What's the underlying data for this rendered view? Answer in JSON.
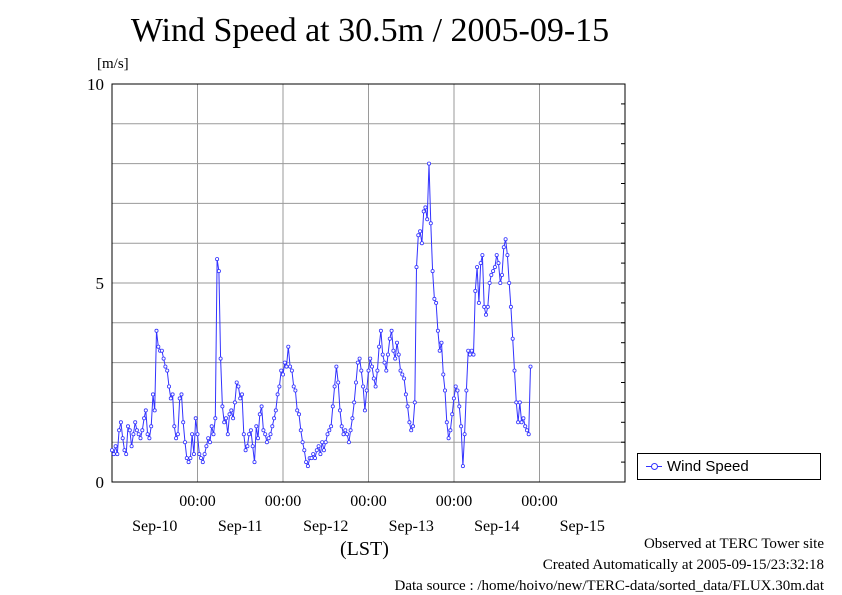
{
  "chart_data": {
    "type": "line",
    "title": "Wind Speed at 30.5m / 2005-09-15",
    "ylabel": "[m/s]",
    "xlabel": "(LST)",
    "ylim": [
      0,
      10
    ],
    "xlim": [
      0,
      6
    ],
    "y_ticks": [
      0,
      5,
      10
    ],
    "x_time_ticks": [
      "00:00",
      "00:00",
      "00:00",
      "00:00",
      "00:00"
    ],
    "x_date_labels": [
      "Sep-10",
      "Sep-11",
      "Sep-12",
      "Sep-13",
      "Sep-14",
      "Sep-15"
    ],
    "grid": true,
    "legend_position": "right",
    "series": [
      {
        "name": "Wind Speed",
        "color": "#3333ff",
        "x_start": 0,
        "x_step": 0.02083,
        "values": [
          0.8,
          0.7,
          0.9,
          0.7,
          1.3,
          1.5,
          1.1,
          0.8,
          0.7,
          1.4,
          1.3,
          0.9,
          1.2,
          1.5,
          1.3,
          1.2,
          1.1,
          1.3,
          1.6,
          1.8,
          1.2,
          1.1,
          1.4,
          2.2,
          1.8,
          3.8,
          3.4,
          3.3,
          3.3,
          3.1,
          2.9,
          2.8,
          2.4,
          2.1,
          2.2,
          1.4,
          1.1,
          1.2,
          2.1,
          2.2,
          1.5,
          1.0,
          0.6,
          0.5,
          0.6,
          1.2,
          0.7,
          1.6,
          1.2,
          0.7,
          0.6,
          0.5,
          0.7,
          0.9,
          1.1,
          1.0,
          1.4,
          1.2,
          1.6,
          5.6,
          5.3,
          3.1,
          1.9,
          1.5,
          1.6,
          1.2,
          1.7,
          1.8,
          1.6,
          2.0,
          2.5,
          2.4,
          2.1,
          2.2,
          1.2,
          0.8,
          0.9,
          1.2,
          1.3,
          0.9,
          0.5,
          1.4,
          1.1,
          1.7,
          1.9,
          1.3,
          1.2,
          1.0,
          1.1,
          1.2,
          1.4,
          1.6,
          1.8,
          2.2,
          2.4,
          2.8,
          2.7,
          3.0,
          2.9,
          3.4,
          2.9,
          2.8,
          2.4,
          2.3,
          1.8,
          1.7,
          1.3,
          1.0,
          0.8,
          0.5,
          0.4,
          0.6,
          0.6,
          0.7,
          0.6,
          0.8,
          0.9,
          0.7,
          1.0,
          0.8,
          1.0,
          1.2,
          1.3,
          1.4,
          1.9,
          2.4,
          2.9,
          2.5,
          1.8,
          1.4,
          1.2,
          1.3,
          1.2,
          1.0,
          1.3,
          1.6,
          2.0,
          2.5,
          3.0,
          3.1,
          2.8,
          2.4,
          1.8,
          2.3,
          2.8,
          3.1,
          2.9,
          2.6,
          2.4,
          2.8,
          3.4,
          3.8,
          3.2,
          3.0,
          2.8,
          3.2,
          3.6,
          3.8,
          3.3,
          3.1,
          3.5,
          3.2,
          2.8,
          2.7,
          2.6,
          2.2,
          1.9,
          1.5,
          1.3,
          1.4,
          2.0,
          5.4,
          6.2,
          6.3,
          6.0,
          6.8,
          6.9,
          6.6,
          8.0,
          6.5,
          5.3,
          4.6,
          4.5,
          3.8,
          3.3,
          3.5,
          2.7,
          2.3,
          1.5,
          1.1,
          1.3,
          1.7,
          2.1,
          2.4,
          2.3,
          1.9,
          1.4,
          0.4,
          1.2,
          2.3,
          3.3,
          3.2,
          3.3,
          3.2,
          4.8,
          5.4,
          4.5,
          5.5,
          5.7,
          4.4,
          4.2,
          4.4,
          5.0,
          5.2,
          5.3,
          5.4,
          5.7,
          5.5,
          5.0,
          5.2,
          5.9,
          6.1,
          5.7,
          5.0,
          4.4,
          3.6,
          2.8,
          2.0,
          1.5,
          2.0,
          1.5,
          1.6,
          1.4,
          1.3,
          1.2,
          2.9
        ]
      }
    ],
    "notes": [
      "Observed at TERC Tower site",
      "Created Automatically at 2005-09-15/23:32:18",
      "Data source : /home/hoivo/new/TERC-data/sorted_data/FLUX.30m.dat"
    ]
  }
}
